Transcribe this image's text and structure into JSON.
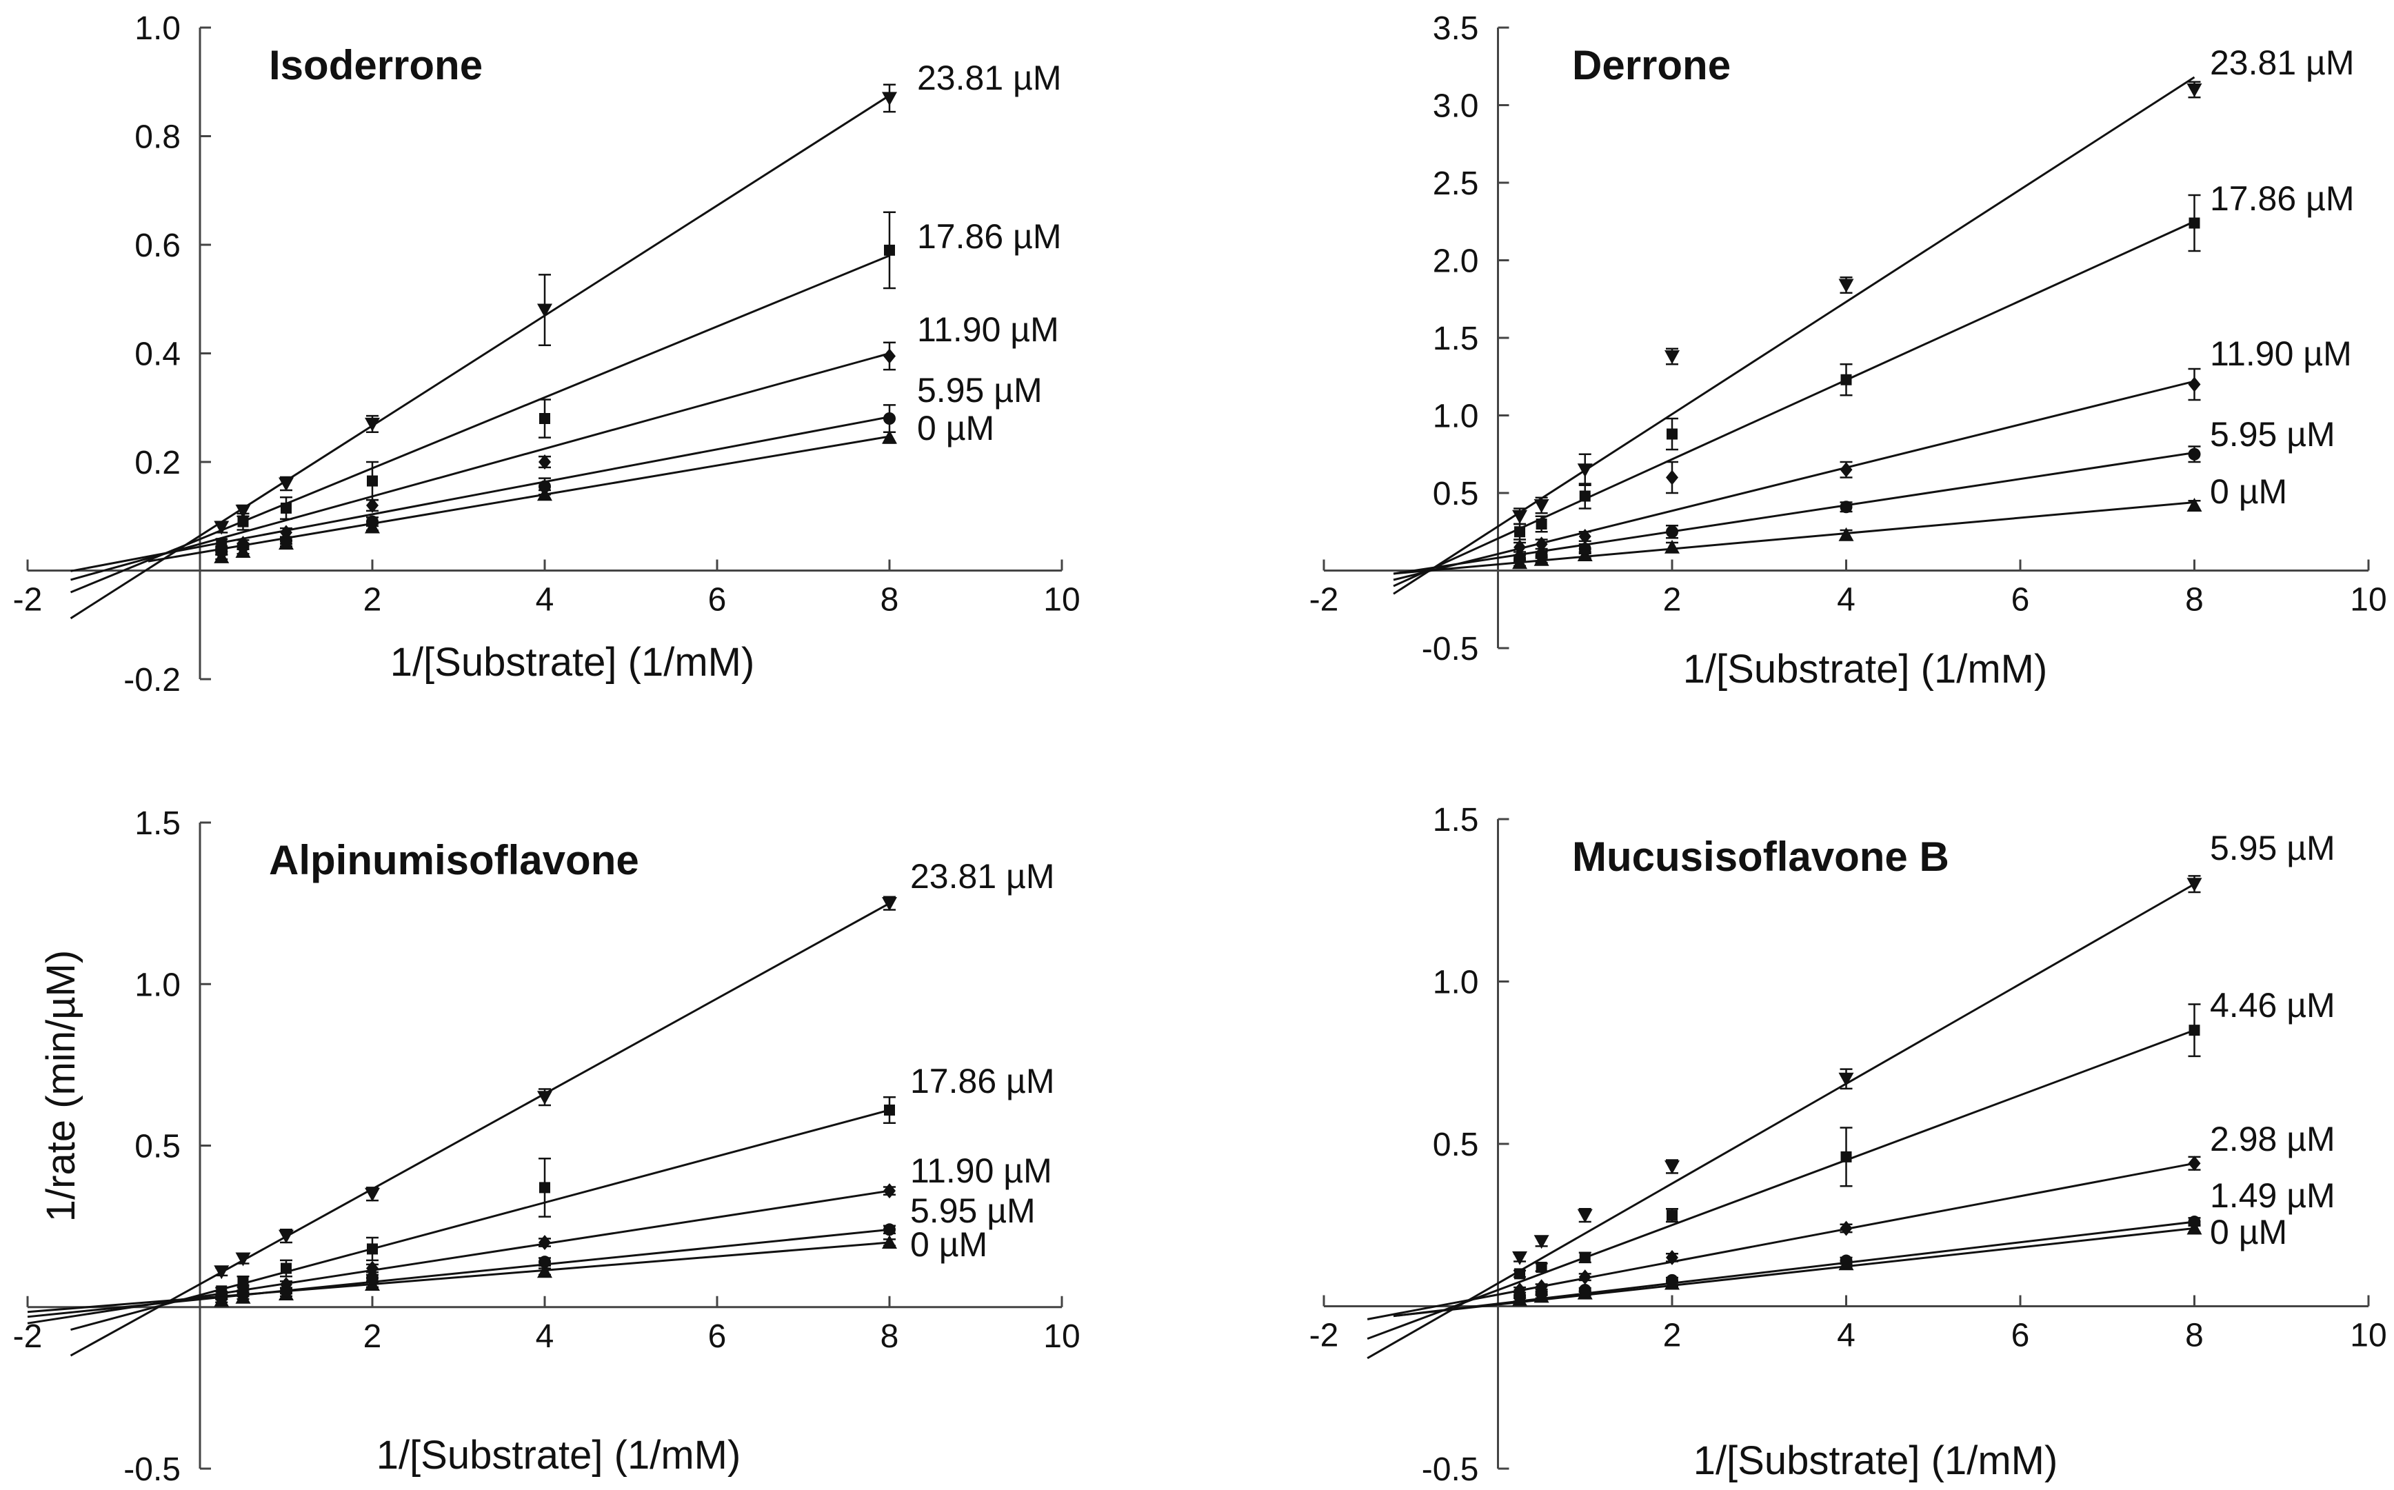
{
  "figure": {
    "ylabel": "1/rate (min/µM)"
  },
  "chart_data": [
    {
      "type": "scatter",
      "title": "Isoderrone",
      "xlabel": "1/[Substrate] (1/mM)",
      "ylabel": "1/rate (min/µM)",
      "xlim": [
        -2,
        10
      ],
      "ylim": [
        -0.2,
        1.0
      ],
      "xticks": [
        "-2",
        "2",
        "4",
        "6",
        "8",
        "10"
      ],
      "yticks": [
        "-0.2",
        "0.2",
        "0.4",
        "0.6",
        "0.8",
        "1.0"
      ],
      "x": [
        0.25,
        0.5,
        1,
        2,
        4,
        8
      ],
      "series": [
        {
          "name": "0 µM",
          "marker": "triangle-up",
          "values": [
            0.025,
            0.035,
            0.05,
            0.08,
            0.14,
            0.245
          ],
          "errors": [
            0.004,
            0.004,
            0.005,
            0.006,
            0.008,
            0.01
          ],
          "line": [
            -0.6,
            0.017,
            8,
            0.247
          ]
        },
        {
          "name": "5.95 µM",
          "marker": "circle",
          "values": [
            0.035,
            0.045,
            0.055,
            0.09,
            0.155,
            0.28
          ],
          "errors": [
            0.005,
            0.005,
            0.006,
            0.008,
            0.015,
            0.025
          ],
          "line": [
            -1.5,
            -0.001,
            8,
            0.283
          ]
        },
        {
          "name": "11.90 µM",
          "marker": "diamond",
          "values": [
            0.04,
            0.05,
            0.07,
            0.12,
            0.2,
            0.395
          ],
          "errors": [
            0.005,
            0.006,
            0.008,
            0.01,
            0.01,
            0.025
          ],
          "line": [
            -1.5,
            -0.017,
            8,
            0.4
          ]
        },
        {
          "name": "17.86 µM",
          "marker": "square",
          "values": [
            0.05,
            0.09,
            0.115,
            0.165,
            0.28,
            0.59
          ],
          "errors": [
            0.008,
            0.015,
            0.02,
            0.035,
            0.035,
            0.07
          ],
          "line": [
            -1.5,
            -0.04,
            8,
            0.58
          ]
        },
        {
          "name": "23.81 µM",
          "marker": "triangle-down",
          "values": [
            0.08,
            0.11,
            0.16,
            0.27,
            0.48,
            0.87
          ],
          "errors": [
            0.01,
            0.01,
            0.012,
            0.015,
            0.065,
            0.025
          ],
          "line": [
            -1.5,
            -0.088,
            8,
            0.875
          ]
        }
      ],
      "annotations": [
        "23.81 µM",
        "17.86 µM",
        "11.90 µM",
        "5.95 µM",
        "0 µM"
      ]
    },
    {
      "type": "scatter",
      "title": "Derrone",
      "xlabel": "1/[Substrate] (1/mM)",
      "ylabel": "",
      "xlim": [
        -2,
        10
      ],
      "ylim": [
        -0.5,
        3.5
      ],
      "xticks": [
        "-2",
        "2",
        "4",
        "6",
        "8",
        "10"
      ],
      "yticks": [
        "-0.5",
        "0.5",
        "1.0",
        "1.5",
        "2.0",
        "2.5",
        "3.0",
        "3.5"
      ],
      "x": [
        0.25,
        0.5,
        1,
        2,
        4,
        8
      ],
      "series": [
        {
          "name": "0 µM",
          "marker": "triangle-up",
          "values": [
            0.05,
            0.07,
            0.1,
            0.15,
            0.23,
            0.42
          ],
          "errors": [
            0.02,
            0.02,
            0.02,
            0.03,
            0.03,
            0.03
          ],
          "line": [
            -1.2,
            -0.02,
            8,
            0.44
          ]
        },
        {
          "name": "5.95 µM",
          "marker": "circle",
          "values": [
            0.08,
            0.1,
            0.14,
            0.25,
            0.41,
            0.75
          ],
          "errors": [
            0.02,
            0.02,
            0.03,
            0.04,
            0.03,
            0.05
          ],
          "line": [
            -1.2,
            -0.02,
            8,
            0.76
          ]
        },
        {
          "name": "11.90 µM",
          "marker": "diamond",
          "values": [
            0.15,
            0.17,
            0.22,
            0.6,
            0.65,
            1.2
          ],
          "errors": [
            0.03,
            0.03,
            0.03,
            0.1,
            0.05,
            0.1
          ],
          "line": [
            -1.2,
            -0.06,
            8,
            1.22
          ]
        },
        {
          "name": "17.86 µM",
          "marker": "square",
          "values": [
            0.25,
            0.3,
            0.48,
            0.88,
            1.23,
            2.24
          ],
          "errors": [
            0.05,
            0.05,
            0.08,
            0.1,
            0.1,
            0.18
          ],
          "line": [
            -1.2,
            -0.1,
            8,
            2.25
          ]
        },
        {
          "name": "23.81 µM",
          "marker": "triangle-down",
          "values": [
            0.35,
            0.42,
            0.65,
            1.38,
            1.84,
            3.1
          ],
          "errors": [
            0.05,
            0.05,
            0.1,
            0.05,
            0.05,
            0.05
          ],
          "line": [
            -1.2,
            -0.15,
            8,
            3.18
          ]
        }
      ],
      "annotations": [
        "23.81 µM",
        "17.86 µM",
        "11.90 µM",
        "5.95 µM",
        "0 µM"
      ]
    },
    {
      "type": "scatter",
      "title": "Alpinumisoflavone",
      "xlabel": "1/[Substrate] (1/mM)",
      "ylabel": "1/rate (min/µM)",
      "xlim": [
        -2,
        10
      ],
      "ylim": [
        -0.5,
        1.5
      ],
      "xticks": [
        "-2",
        "2",
        "4",
        "6",
        "8",
        "10"
      ],
      "yticks": [
        "-0.5",
        "0.5",
        "1.0",
        "1.5"
      ],
      "x": [
        0.25,
        0.5,
        1,
        2,
        4,
        8
      ],
      "series": [
        {
          "name": "0 µM",
          "marker": "triangle-up",
          "values": [
            0.02,
            0.03,
            0.04,
            0.07,
            0.11,
            0.2
          ],
          "errors": [
            0.005,
            0.005,
            0.006,
            0.008,
            0.01,
            0.01
          ],
          "line": [
            -2,
            -0.015,
            8,
            0.2
          ]
        },
        {
          "name": "5.95 µM",
          "marker": "circle",
          "values": [
            0.03,
            0.04,
            0.05,
            0.09,
            0.14,
            0.24
          ],
          "errors": [
            0.006,
            0.006,
            0.008,
            0.01,
            0.012,
            0.012
          ],
          "line": [
            -2,
            -0.03,
            8,
            0.24
          ]
        },
        {
          "name": "11.90 µM",
          "marker": "diamond",
          "values": [
            0.04,
            0.06,
            0.07,
            0.12,
            0.2,
            0.36
          ],
          "errors": [
            0.008,
            0.008,
            0.01,
            0.012,
            0.012,
            0.012
          ],
          "line": [
            -2,
            -0.05,
            8,
            0.36
          ]
        },
        {
          "name": "17.86 µM",
          "marker": "square",
          "values": [
            0.05,
            0.08,
            0.12,
            0.18,
            0.37,
            0.61
          ],
          "errors": [
            0.01,
            0.015,
            0.025,
            0.035,
            0.09,
            0.04
          ],
          "line": [
            -1.5,
            -0.07,
            8,
            0.61
          ]
        },
        {
          "name": "23.81 µM",
          "marker": "triangle-down",
          "values": [
            0.11,
            0.15,
            0.22,
            0.35,
            0.65,
            1.25
          ],
          "errors": [
            0.012,
            0.015,
            0.02,
            0.02,
            0.025,
            0.02
          ],
          "line": [
            -1.5,
            -0.15,
            8,
            1.25
          ]
        }
      ],
      "annotations": [
        "23.81 µM",
        "17.86 µM",
        "11.90 µM",
        "5.95 µM",
        "0 µM"
      ]
    },
    {
      "type": "scatter",
      "title": "Mucusisoflavone B",
      "xlabel": "1/[Substrate] (1/mM)",
      "ylabel": "",
      "xlim": [
        -2,
        10
      ],
      "ylim": [
        -0.5,
        1.5
      ],
      "xticks": [
        "-2",
        "2",
        "4",
        "6",
        "8",
        "10"
      ],
      "yticks": [
        "-0.5",
        "0.5",
        "1.0",
        "1.5"
      ],
      "x": [
        0.25,
        0.5,
        1,
        2,
        4,
        8
      ],
      "series": [
        {
          "name": "0 µM",
          "marker": "triangle-up",
          "values": [
            0.02,
            0.03,
            0.04,
            0.07,
            0.13,
            0.24
          ],
          "errors": [
            0.005,
            0.005,
            0.006,
            0.008,
            0.01,
            0.012
          ],
          "line": [
            -1.2,
            -0.03,
            8,
            0.24
          ]
        },
        {
          "name": "1.49 µM",
          "marker": "circle",
          "values": [
            0.03,
            0.04,
            0.05,
            0.08,
            0.14,
            0.26
          ],
          "errors": [
            0.005,
            0.006,
            0.006,
            0.008,
            0.01,
            0.012
          ],
          "line": [
            -1.2,
            -0.03,
            8,
            0.26
          ]
        },
        {
          "name": "2.98 µM",
          "marker": "diamond",
          "values": [
            0.05,
            0.06,
            0.09,
            0.15,
            0.24,
            0.44
          ],
          "errors": [
            0.008,
            0.008,
            0.01,
            0.012,
            0.012,
            0.02
          ],
          "line": [
            -1.5,
            -0.04,
            8,
            0.44
          ]
        },
        {
          "name": "4.46 µM",
          "marker": "square",
          "values": [
            0.1,
            0.12,
            0.15,
            0.28,
            0.46,
            0.85
          ],
          "errors": [
            0.01,
            0.012,
            0.015,
            0.02,
            0.09,
            0.08
          ],
          "line": [
            -1.5,
            -0.1,
            8,
            0.85
          ]
        },
        {
          "name": "5.95 µM",
          "marker": "triangle-down",
          "values": [
            0.15,
            0.2,
            0.28,
            0.43,
            0.7,
            1.3
          ],
          "errors": [
            0.012,
            0.015,
            0.02,
            0.02,
            0.03,
            0.025
          ],
          "line": [
            -1.5,
            -0.16,
            8,
            1.3
          ]
        }
      ],
      "annotations": [
        "5.95 µM",
        "4.46 µM",
        "2.98 µM",
        "1.49 µM",
        "0 µM"
      ]
    }
  ]
}
